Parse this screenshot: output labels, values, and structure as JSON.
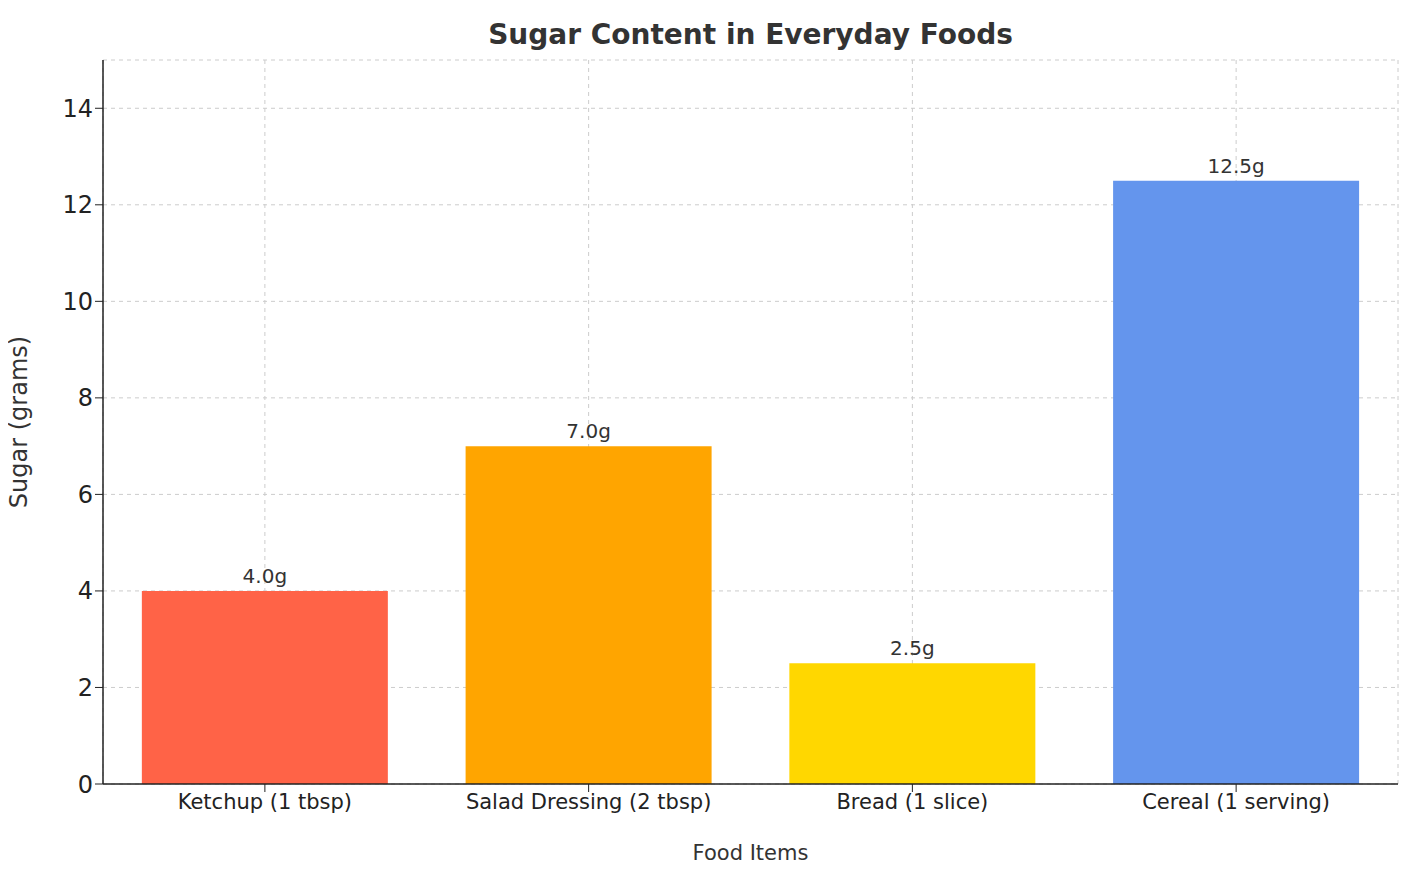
{
  "chart_data": {
    "type": "bar",
    "title": "Sugar Content in Everyday Foods",
    "x_label": "Food Items",
    "y_label": "Sugar (grams)",
    "categories": [
      "Ketchup (1 tbsp)",
      "Salad Dressing (2 tbsp)",
      "Bread (1 slice)",
      "Cereal (1 serving)"
    ],
    "values": [
      4.0,
      7.0,
      2.5,
      12.5
    ],
    "value_labels": [
      "4.0g",
      "7.0g",
      "2.5g",
      "12.5g"
    ],
    "colors": [
      "#ff6347",
      "#ffa500",
      "#ffd700",
      "#6495ed"
    ],
    "ylim": [
      0,
      15
    ],
    "yticks": [
      0,
      2,
      4,
      6,
      8,
      10,
      12,
      14
    ],
    "grid": true,
    "data_labels": true
  }
}
